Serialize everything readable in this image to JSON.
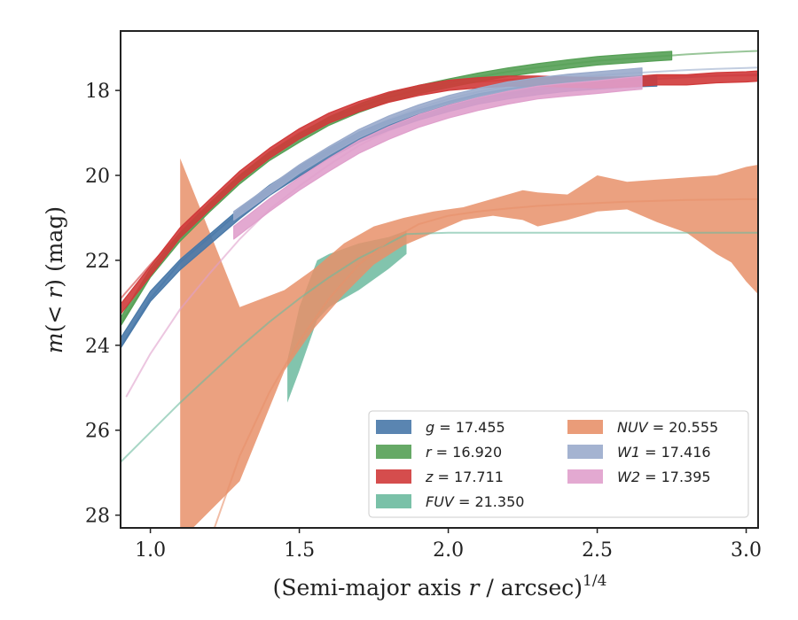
{
  "chart_data": {
    "type": "line",
    "xlabel": "(Semi-major axis r / arcsec)^1/4",
    "ylabel": "m(< r) (mag)",
    "xlim": [
      0.9,
      3.04
    ],
    "ylim": [
      28.3,
      16.6
    ],
    "y_inverted": true,
    "xticks": [
      1.0,
      1.5,
      2.0,
      2.5,
      3.0
    ],
    "xtick_labels": [
      "1.0",
      "1.5",
      "2.0",
      "2.5",
      "3.0"
    ],
    "yticks": [
      18,
      20,
      22,
      24,
      26,
      28
    ],
    "ytick_labels": [
      "18",
      "20",
      "22",
      "24",
      "26",
      "28"
    ],
    "grid": false,
    "legend_position": "lower-right",
    "series": [
      {
        "key": "g",
        "label": "g = 17.455",
        "color": "#4878a8",
        "width": 1.2,
        "model": [
          [
            0.9,
            24.05
          ],
          [
            1.0,
            22.9
          ],
          [
            1.1,
            22.05
          ],
          [
            1.2,
            21.45
          ],
          [
            1.3,
            20.85
          ],
          [
            1.4,
            20.3
          ],
          [
            1.5,
            19.85
          ],
          [
            1.6,
            19.45
          ],
          [
            1.7,
            19.1
          ],
          [
            1.8,
            18.8
          ],
          [
            1.9,
            18.55
          ],
          [
            2.0,
            18.35
          ],
          [
            2.1,
            18.2
          ],
          [
            2.2,
            18.08
          ],
          [
            2.3,
            17.98
          ],
          [
            2.4,
            17.9
          ],
          [
            2.5,
            17.83
          ],
          [
            2.6,
            17.78
          ],
          [
            2.7,
            17.73
          ],
          [
            2.8,
            17.69
          ],
          [
            2.9,
            17.66
          ],
          [
            3.0,
            17.63
          ],
          [
            3.04,
            17.62
          ]
        ],
        "data": [
          [
            0.9,
            23.95
          ],
          [
            1.0,
            22.85
          ],
          [
            1.1,
            22.1
          ],
          [
            1.2,
            21.5
          ],
          [
            1.3,
            20.9
          ],
          [
            1.4,
            20.35
          ],
          [
            1.5,
            19.9
          ],
          [
            1.6,
            19.48
          ],
          [
            1.7,
            19.1
          ],
          [
            1.8,
            18.82
          ],
          [
            1.9,
            18.58
          ],
          [
            2.0,
            18.38
          ],
          [
            2.1,
            18.2
          ],
          [
            2.2,
            18.08
          ],
          [
            2.3,
            17.98
          ],
          [
            2.4,
            17.9
          ],
          [
            2.5,
            17.85
          ],
          [
            2.6,
            17.8
          ],
          [
            2.7,
            17.78
          ]
        ],
        "data_half": 0.12
      },
      {
        "key": "r",
        "label": "r = 16.920",
        "color": "#55a055",
        "width": 1.2,
        "model": [
          [
            0.9,
            23.5
          ],
          [
            1.0,
            22.35
          ],
          [
            1.1,
            21.4
          ],
          [
            1.2,
            20.7
          ],
          [
            1.3,
            20.05
          ],
          [
            1.4,
            19.5
          ],
          [
            1.5,
            19.08
          ],
          [
            1.6,
            18.7
          ],
          [
            1.7,
            18.4
          ],
          [
            1.8,
            18.15
          ],
          [
            1.9,
            17.97
          ],
          [
            2.0,
            17.82
          ],
          [
            2.1,
            17.68
          ],
          [
            2.2,
            17.56
          ],
          [
            2.3,
            17.46
          ],
          [
            2.4,
            17.38
          ],
          [
            2.5,
            17.3
          ],
          [
            2.6,
            17.25
          ],
          [
            2.7,
            17.2
          ],
          [
            2.8,
            17.15
          ],
          [
            2.9,
            17.11
          ],
          [
            3.0,
            17.08
          ],
          [
            3.04,
            17.07
          ]
        ],
        "data": [
          [
            0.9,
            23.45
          ],
          [
            1.0,
            22.3
          ],
          [
            1.1,
            21.45
          ],
          [
            1.2,
            20.75
          ],
          [
            1.3,
            20.1
          ],
          [
            1.4,
            19.55
          ],
          [
            1.5,
            19.12
          ],
          [
            1.6,
            18.72
          ],
          [
            1.7,
            18.42
          ],
          [
            1.8,
            18.17
          ],
          [
            1.9,
            17.98
          ],
          [
            2.0,
            17.83
          ],
          [
            2.1,
            17.69
          ],
          [
            2.2,
            17.57
          ],
          [
            2.3,
            17.47
          ],
          [
            2.4,
            17.38
          ],
          [
            2.5,
            17.3
          ],
          [
            2.6,
            17.25
          ],
          [
            2.7,
            17.2
          ],
          [
            2.75,
            17.18
          ]
        ],
        "data_half": 0.1
      },
      {
        "key": "z",
        "label": "z = 17.711",
        "color": "#d03a3a",
        "width": 1.2,
        "model": [
          [
            0.9,
            22.9
          ],
          [
            1.0,
            22.1
          ],
          [
            1.1,
            21.35
          ],
          [
            1.2,
            20.65
          ],
          [
            1.3,
            20.0
          ],
          [
            1.4,
            19.45
          ],
          [
            1.5,
            19.0
          ],
          [
            1.6,
            18.65
          ],
          [
            1.7,
            18.38
          ],
          [
            1.8,
            18.16
          ],
          [
            1.9,
            18.0
          ],
          [
            2.0,
            17.87
          ],
          [
            2.1,
            17.8
          ],
          [
            2.2,
            17.75
          ],
          [
            2.3,
            17.72
          ],
          [
            2.4,
            17.7
          ],
          [
            2.5,
            17.69
          ],
          [
            2.6,
            17.68
          ],
          [
            2.7,
            17.67
          ],
          [
            2.8,
            17.66
          ],
          [
            2.9,
            17.65
          ],
          [
            3.0,
            17.65
          ],
          [
            3.04,
            17.65
          ]
        ],
        "data": [
          [
            0.9,
            23.15
          ],
          [
            1.0,
            22.25
          ],
          [
            1.1,
            21.35
          ],
          [
            1.2,
            20.68
          ],
          [
            1.3,
            20.02
          ],
          [
            1.4,
            19.48
          ],
          [
            1.5,
            19.02
          ],
          [
            1.6,
            18.65
          ],
          [
            1.7,
            18.38
          ],
          [
            1.8,
            18.16
          ],
          [
            1.9,
            18.0
          ],
          [
            2.0,
            17.88
          ],
          [
            2.1,
            17.82
          ],
          [
            2.2,
            17.78
          ],
          [
            2.3,
            17.78
          ],
          [
            2.4,
            17.8
          ],
          [
            2.5,
            17.82
          ],
          [
            2.6,
            17.8
          ],
          [
            2.7,
            17.75
          ],
          [
            2.8,
            17.75
          ],
          [
            2.9,
            17.7
          ],
          [
            3.0,
            17.68
          ],
          [
            3.04,
            17.66
          ]
        ],
        "data_half": 0.12
      },
      {
        "key": "FUV",
        "label": "FUV = 21.350",
        "color": "#6cba9f",
        "width": 1.0,
        "model": [
          [
            0.9,
            26.75
          ],
          [
            1.0,
            26.05
          ],
          [
            1.1,
            25.35
          ],
          [
            1.2,
            24.7
          ],
          [
            1.3,
            24.05
          ],
          [
            1.4,
            23.45
          ],
          [
            1.5,
            22.9
          ],
          [
            1.6,
            22.4
          ],
          [
            1.7,
            21.95
          ],
          [
            1.8,
            21.6
          ],
          [
            1.86,
            21.38
          ],
          [
            2.0,
            21.35
          ],
          [
            2.2,
            21.35
          ],
          [
            2.5,
            21.35
          ],
          [
            2.8,
            21.35
          ],
          [
            3.04,
            21.35
          ]
        ],
        "band": [
          [
            1.46,
            24.35,
            25.35
          ],
          [
            1.5,
            23.1,
            24.6
          ],
          [
            1.56,
            22.0,
            23.4
          ],
          [
            1.6,
            21.85,
            23.1
          ],
          [
            1.7,
            21.6,
            22.7
          ],
          [
            1.8,
            21.45,
            22.2
          ],
          [
            1.86,
            21.3,
            21.85
          ]
        ]
      },
      {
        "key": "NUV",
        "label": "NUV = 20.555",
        "color": "#e8916a",
        "width": 1.0,
        "model": [
          [
            1.2,
            28.6
          ],
          [
            1.3,
            26.6
          ],
          [
            1.4,
            25.1
          ],
          [
            1.5,
            23.9
          ],
          [
            1.6,
            22.9
          ],
          [
            1.7,
            22.1
          ],
          [
            1.8,
            21.55
          ],
          [
            1.9,
            21.15
          ],
          [
            2.0,
            20.95
          ],
          [
            2.1,
            20.85
          ],
          [
            2.2,
            20.78
          ],
          [
            2.3,
            20.72
          ],
          [
            2.4,
            20.68
          ],
          [
            2.5,
            20.65
          ],
          [
            2.6,
            20.62
          ],
          [
            2.7,
            20.6
          ],
          [
            2.8,
            20.58
          ],
          [
            2.9,
            20.57
          ],
          [
            3.0,
            20.56
          ],
          [
            3.04,
            20.56
          ]
        ],
        "band": [
          [
            1.1,
            19.6,
            28.6
          ],
          [
            1.3,
            23.1,
            27.2
          ],
          [
            1.45,
            22.7,
            24.6
          ],
          [
            1.55,
            22.2,
            23.6
          ],
          [
            1.65,
            21.6,
            22.8
          ],
          [
            1.75,
            21.2,
            22.1
          ],
          [
            1.85,
            21.0,
            21.65
          ],
          [
            1.95,
            20.85,
            21.35
          ],
          [
            2.05,
            20.75,
            21.05
          ],
          [
            2.15,
            20.55,
            20.95
          ],
          [
            2.25,
            20.35,
            21.05
          ],
          [
            2.3,
            20.4,
            21.2
          ],
          [
            2.4,
            20.45,
            21.05
          ],
          [
            2.5,
            20.0,
            20.85
          ],
          [
            2.6,
            20.15,
            20.8
          ],
          [
            2.7,
            20.1,
            21.1
          ],
          [
            2.8,
            20.05,
            21.35
          ],
          [
            2.9,
            20.0,
            21.85
          ],
          [
            2.95,
            19.9,
            22.05
          ],
          [
            3.0,
            19.8,
            22.5
          ],
          [
            3.04,
            19.75,
            22.8
          ]
        ]
      },
      {
        "key": "W1",
        "label": "W1 = 17.416",
        "color": "#9aabcc",
        "width": 1.0,
        "model": [
          [
            1.28,
            20.95
          ],
          [
            1.4,
            20.35
          ],
          [
            1.5,
            19.85
          ],
          [
            1.6,
            19.4
          ],
          [
            1.7,
            19.0
          ],
          [
            1.8,
            18.68
          ],
          [
            1.9,
            18.42
          ],
          [
            2.0,
            18.2
          ],
          [
            2.1,
            18.03
          ],
          [
            2.2,
            17.9
          ],
          [
            2.3,
            17.8
          ],
          [
            2.4,
            17.72
          ],
          [
            2.5,
            17.65
          ],
          [
            2.6,
            17.6
          ],
          [
            2.7,
            17.56
          ],
          [
            2.8,
            17.52
          ],
          [
            2.9,
            17.49
          ],
          [
            3.0,
            17.47
          ],
          [
            3.04,
            17.46
          ]
        ],
        "data": [
          [
            1.28,
            20.95
          ],
          [
            1.4,
            20.35
          ],
          [
            1.5,
            19.85
          ],
          [
            1.6,
            19.42
          ],
          [
            1.7,
            19.02
          ],
          [
            1.8,
            18.7
          ],
          [
            1.9,
            18.44
          ],
          [
            2.0,
            18.22
          ],
          [
            2.1,
            18.05
          ],
          [
            2.2,
            17.9
          ],
          [
            2.3,
            17.8
          ],
          [
            2.4,
            17.72
          ],
          [
            2.5,
            17.66
          ],
          [
            2.6,
            17.6
          ],
          [
            2.65,
            17.57
          ]
        ],
        "data_half": 0.1
      },
      {
        "key": "W2",
        "label": "W2 = 17.395",
        "color": "#e0a0cc",
        "width": 1.0,
        "model": [
          [
            0.92,
            25.2
          ],
          [
            1.0,
            24.2
          ],
          [
            1.1,
            23.15
          ],
          [
            1.2,
            22.3
          ],
          [
            1.3,
            21.5
          ],
          [
            1.4,
            20.8
          ],
          [
            1.5,
            20.25
          ],
          [
            1.6,
            19.75
          ],
          [
            1.7,
            19.3
          ],
          [
            1.8,
            18.95
          ],
          [
            1.9,
            18.68
          ],
          [
            2.0,
            18.45
          ],
          [
            2.1,
            18.27
          ],
          [
            2.2,
            18.12
          ],
          [
            2.3,
            18.0
          ],
          [
            2.4,
            17.9
          ],
          [
            2.5,
            17.82
          ],
          [
            2.6,
            17.76
          ],
          [
            2.7,
            17.72
          ],
          [
            2.8,
            17.68
          ],
          [
            2.9,
            17.65
          ],
          [
            3.0,
            17.63
          ],
          [
            3.04,
            17.62
          ]
        ],
        "data": [
          [
            1.28,
            21.35
          ],
          [
            1.4,
            20.7
          ],
          [
            1.5,
            20.2
          ],
          [
            1.6,
            19.75
          ],
          [
            1.7,
            19.33
          ],
          [
            1.8,
            19.0
          ],
          [
            1.9,
            18.72
          ],
          [
            2.0,
            18.5
          ],
          [
            2.1,
            18.32
          ],
          [
            2.2,
            18.17
          ],
          [
            2.3,
            18.05
          ],
          [
            2.4,
            17.98
          ],
          [
            2.5,
            17.92
          ],
          [
            2.6,
            17.85
          ],
          [
            2.65,
            17.82
          ]
        ],
        "data_half": 0.15
      }
    ],
    "legend_columns": [
      [
        "g",
        "r",
        "z",
        "FUV"
      ],
      [
        "NUV",
        "W1",
        "W2"
      ]
    ]
  }
}
